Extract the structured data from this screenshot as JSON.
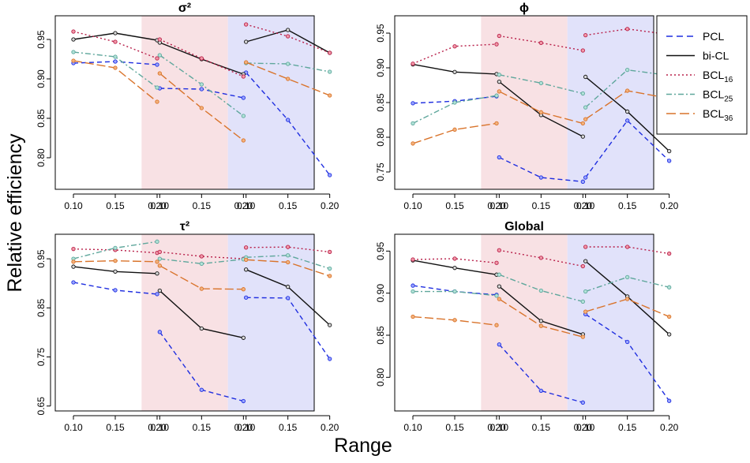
{
  "ylabel": "Relative efficiency",
  "xlabel": "Range",
  "regions": {
    "middle_color": "#f8e1e4",
    "right_color": "#e1e2fa"
  },
  "chart_data": [
    {
      "type": "line",
      "title": "σ²",
      "ylim": [
        0.76,
        0.98
      ],
      "yticks": [
        0.8,
        0.85,
        0.9,
        0.95
      ],
      "ytick_labels": [
        "0.80",
        "0.85",
        "0.90",
        "0.95"
      ],
      "xtick_labels": [
        "0.10",
        "0.15",
        "0.20",
        "0.10",
        "0.15",
        "0.20",
        "0.10",
        "0.15",
        "0.20"
      ],
      "series": [
        {
          "name": "PCL",
          "values": [
            [
              0.92,
              0.922,
              0.918
            ],
            [
              0.888,
              0.887,
              0.876
            ],
            [
              0.908,
              0.848,
              0.778
            ]
          ]
        },
        {
          "name": "bi-CL",
          "values": [
            [
              0.95,
              0.958,
              0.949
            ],
            [
              0.946,
              0.925,
              0.906
            ],
            [
              0.947,
              0.962,
              0.933
            ]
          ]
        },
        {
          "name": "BCL16",
          "values": [
            [
              0.96,
              0.947,
              0.926
            ],
            [
              0.95,
              0.926,
              0.903
            ],
            [
              0.969,
              0.954,
              0.933
            ]
          ]
        },
        {
          "name": "BCL25",
          "values": [
            [
              0.934,
              0.928,
              0.889
            ],
            [
              0.93,
              0.893,
              0.853
            ],
            [
              0.92,
              0.919,
              0.909
            ]
          ]
        },
        {
          "name": "BCL36",
          "values": [
            [
              0.923,
              0.914,
              0.871
            ],
            [
              0.907,
              0.863,
              0.822
            ],
            [
              0.921,
              0.9,
              0.879
            ]
          ]
        }
      ]
    },
    {
      "type": "line",
      "title": "ϕ",
      "ylim": [
        0.725,
        0.975
      ],
      "yticks": [
        0.75,
        0.8,
        0.85,
        0.9,
        0.95
      ],
      "ytick_labels": [
        "0.75",
        "0.80",
        "0.85",
        "0.90",
        "0.95"
      ],
      "xtick_labels": [
        "0.10",
        "0.15",
        "0.20",
        "0.10",
        "0.15",
        "0.20",
        "0.10",
        "0.15",
        "0.20"
      ],
      "series": [
        {
          "name": "PCL",
          "values": [
            [
              0.849,
              0.852,
              0.859
            ],
            [
              0.771,
              0.742,
              0.736
            ],
            [
              0.742,
              0.824,
              0.766
            ]
          ]
        },
        {
          "name": "bi-CL",
          "values": [
            [
              0.905,
              0.894,
              0.891
            ],
            [
              0.88,
              0.832,
              0.801
            ],
            [
              0.887,
              0.837,
              0.78
            ]
          ]
        },
        {
          "name": "BCL16",
          "values": [
            [
              0.906,
              0.931,
              0.934
            ],
            [
              0.946,
              0.936,
              0.925
            ],
            [
              0.947,
              0.956,
              0.948
            ]
          ]
        },
        {
          "name": "BCL25",
          "values": [
            [
              0.82,
              0.85,
              0.86
            ],
            [
              0.89,
              0.878,
              0.863
            ],
            [
              0.843,
              0.897,
              0.889
            ]
          ]
        },
        {
          "name": "BCL36",
          "values": [
            [
              0.791,
              0.811,
              0.82
            ],
            [
              0.866,
              0.836,
              0.82
            ],
            [
              0.826,
              0.867,
              0.856
            ]
          ]
        }
      ]
    },
    {
      "type": "line",
      "title": "τ²",
      "ylim": [
        0.64,
        1.0
      ],
      "yticks": [
        0.65,
        0.75,
        0.85,
        0.95
      ],
      "ytick_labels": [
        "0.65",
        "0.75",
        "0.85",
        "0.95"
      ],
      "xtick_labels": [
        "0.10",
        "0.15",
        "0.20",
        "0.10",
        "0.15",
        "0.20",
        "0.10",
        "0.15",
        "0.20"
      ],
      "series": [
        {
          "name": "PCL",
          "values": [
            [
              0.902,
              0.886,
              0.878
            ],
            [
              0.801,
              0.683,
              0.66
            ],
            [
              0.871,
              0.87,
              0.746
            ]
          ]
        },
        {
          "name": "bi-CL",
          "values": [
            [
              0.934,
              0.924,
              0.92
            ],
            [
              0.885,
              0.808,
              0.789
            ],
            [
              0.928,
              0.893,
              0.815
            ]
          ]
        },
        {
          "name": "BCL16",
          "values": [
            [
              0.97,
              0.968,
              0.962
            ],
            [
              0.964,
              0.955,
              0.95
            ],
            [
              0.973,
              0.974,
              0.964
            ]
          ]
        },
        {
          "name": "BCL25",
          "values": [
            [
              0.95,
              0.972,
              0.985
            ],
            [
              0.95,
              0.94,
              0.949
            ],
            [
              0.953,
              0.957,
              0.93
            ]
          ]
        },
        {
          "name": "BCL36",
          "values": [
            [
              0.944,
              0.946,
              0.944
            ],
            [
              0.936,
              0.889,
              0.888
            ],
            [
              0.948,
              0.943,
              0.915
            ]
          ]
        }
      ]
    },
    {
      "type": "line",
      "title": "Global",
      "ylim": [
        0.76,
        0.97
      ],
      "yticks": [
        0.8,
        0.85,
        0.9,
        0.95
      ],
      "ytick_labels": [
        "0.80",
        "0.85",
        "0.90",
        "0.95"
      ],
      "xtick_labels": [
        "0.10",
        "0.15",
        "0.20",
        "0.10",
        "0.15",
        "0.20",
        "0.10",
        "0.15",
        "0.20"
      ],
      "series": [
        {
          "name": "PCL",
          "values": [
            [
              0.909,
              0.902,
              0.898
            ],
            [
              0.839,
              0.784,
              0.77
            ],
            [
              0.875,
              0.842,
              0.772
            ]
          ]
        },
        {
          "name": "bi-CL",
          "values": [
            [
              0.939,
              0.93,
              0.922
            ],
            [
              0.908,
              0.867,
              0.851
            ],
            [
              0.938,
              0.896,
              0.851
            ]
          ]
        },
        {
          "name": "BCL16",
          "values": [
            [
              0.94,
              0.941,
              0.936
            ],
            [
              0.951,
              0.942,
              0.932
            ],
            [
              0.955,
              0.955,
              0.947
            ]
          ]
        },
        {
          "name": "BCL25",
          "values": [
            [
              0.902,
              0.902,
              0.897
            ],
            [
              0.922,
              0.903,
              0.89
            ],
            [
              0.902,
              0.919,
              0.907
            ]
          ]
        },
        {
          "name": "BCL36",
          "values": [
            [
              0.872,
              0.868,
              0.862
            ],
            [
              0.893,
              0.861,
              0.848
            ],
            [
              0.878,
              0.893,
              0.872
            ]
          ]
        }
      ]
    }
  ],
  "legend": {
    "position": "right",
    "entries": [
      {
        "name": "PCL",
        "label": "PCL",
        "sub": "",
        "color": "#1f2ee0",
        "dash": "8,5"
      },
      {
        "name": "bi-CL",
        "label": "bi-CL",
        "sub": "",
        "color": "#111111",
        "dash": ""
      },
      {
        "name": "BCL16",
        "label": "BCL",
        "sub": "16",
        "color": "#b8204a",
        "dash": "2,3"
      },
      {
        "name": "BCL25",
        "label": "BCL",
        "sub": "25",
        "color": "#5fa79c",
        "dash": "7,3,2,3"
      },
      {
        "name": "BCL36",
        "label": "BCL",
        "sub": "36",
        "color": "#d9742c",
        "dash": "12,5"
      }
    ]
  },
  "series_styles": {
    "PCL": {
      "color": "#1f2ee0",
      "dash": "6,4",
      "point_fill": "#9aa6ff"
    },
    "bi-CL": {
      "color": "#111111",
      "dash": "",
      "point_fill": "#d8d8d8"
    },
    "BCL16": {
      "color": "#b8204a",
      "dash": "2,3",
      "point_fill": "#f29aa8"
    },
    "BCL25": {
      "color": "#5fa79c",
      "dash": "7,3,2,3",
      "point_fill": "#b2e2d8"
    },
    "BCL36": {
      "color": "#d9742c",
      "dash": "11,4",
      "point_fill": "#f3b27d"
    }
  }
}
